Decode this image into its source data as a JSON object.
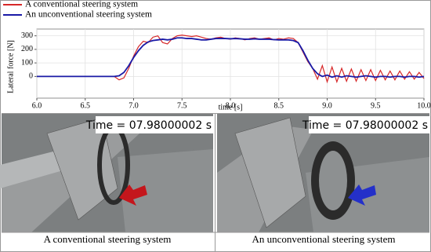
{
  "chart_data": {
    "type": "line",
    "xlabel": "time [s]",
    "ylabel": "Lateral force [N]",
    "x": [
      6.0,
      6.8,
      6.85,
      6.9,
      6.95,
      7.0,
      7.05,
      7.1,
      7.15,
      7.2,
      7.25,
      7.3,
      7.35,
      7.4,
      7.45,
      7.5,
      7.55,
      7.6,
      7.65,
      7.7,
      7.75,
      7.8,
      7.85,
      7.9,
      7.95,
      8.0,
      8.05,
      8.1,
      8.15,
      8.2,
      8.25,
      8.3,
      8.35,
      8.4,
      8.45,
      8.5,
      8.55,
      8.6,
      8.65,
      8.7,
      8.75,
      8.8,
      8.85,
      8.9,
      8.95,
      9.0,
      9.05,
      9.1,
      9.15,
      9.2,
      9.25,
      9.3,
      9.35,
      9.4,
      9.45,
      9.5,
      9.55,
      9.6,
      9.65,
      9.7,
      9.75,
      9.8,
      9.85,
      9.9,
      9.95,
      10.0
    ],
    "series": [
      {
        "name": "A conventional steering system",
        "color": "#d62728",
        "values": [
          0,
          0,
          -25,
          -10,
          60,
          150,
          220,
          260,
          250,
          290,
          300,
          250,
          240,
          280,
          300,
          305,
          300,
          295,
          300,
          290,
          280,
          275,
          285,
          290,
          280,
          275,
          285,
          280,
          270,
          280,
          285,
          275,
          280,
          285,
          270,
          280,
          275,
          285,
          280,
          250,
          180,
          110,
          60,
          -20,
          80,
          -40,
          70,
          -40,
          60,
          -35,
          55,
          -35,
          50,
          -30,
          50,
          -30,
          45,
          -25,
          40,
          -25,
          40,
          -20,
          35,
          -20,
          30,
          -15
        ]
      },
      {
        "name": "An unconventional steering system",
        "color": "#1a1aa6",
        "values": [
          0,
          0,
          5,
          30,
          80,
          140,
          190,
          230,
          255,
          265,
          270,
          275,
          270,
          275,
          285,
          285,
          280,
          280,
          275,
          270,
          270,
          275,
          280,
          280,
          280,
          278,
          280,
          278,
          275,
          275,
          278,
          275,
          275,
          275,
          272,
          270,
          270,
          270,
          265,
          250,
          190,
          120,
          60,
          20,
          0,
          10,
          -5,
          5,
          -5,
          5,
          0,
          -5,
          0,
          5,
          0,
          -5,
          0,
          0,
          -5,
          0,
          0,
          -5,
          0,
          0,
          -5,
          0
        ]
      }
    ],
    "xlim": [
      6,
      10
    ],
    "xticks": [
      {
        "value": 6,
        "label": "6.0"
      },
      6.5,
      {
        "value": 7,
        "label": "7.0"
      },
      7.5,
      {
        "value": 8,
        "label": "8.0"
      },
      8.5,
      {
        "value": 9,
        "label": "9.0"
      },
      9.5,
      {
        "value": 10,
        "label": "10.0"
      }
    ],
    "ylim": [
      -160,
      350
    ],
    "yticks": [
      0,
      100,
      200,
      300
    ],
    "grid": true
  },
  "panels": [
    {
      "overlay": "Time = 07.98000002 s",
      "caption": "A conventional steering system"
    },
    {
      "overlay": "Time = 07.98000002 s",
      "caption": "An unconventional steering system"
    }
  ]
}
